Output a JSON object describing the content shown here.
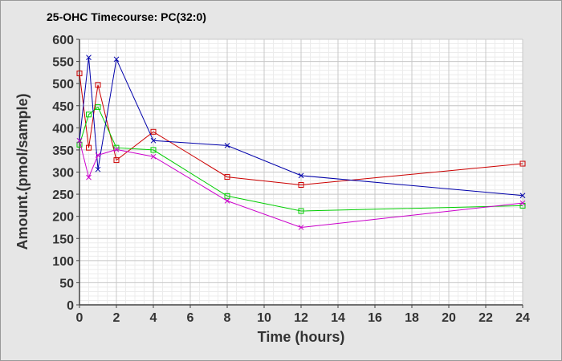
{
  "chart_data": {
    "type": "line",
    "title": "25-OHC Timecourse: PC(32:0)",
    "xlabel": "Time (hours)",
    "ylabel": "Amount.(pmol/sample)",
    "xlim": [
      0,
      24
    ],
    "ylim": [
      0,
      600
    ],
    "x_ticks": [
      "0",
      "2",
      "4",
      "6",
      "8",
      "10",
      "12",
      "14",
      "16",
      "18",
      "20",
      "22",
      "24"
    ],
    "y_ticks": [
      "0",
      "50",
      "100",
      "150",
      "200",
      "250",
      "300",
      "350",
      "400",
      "450",
      "500",
      "550",
      "600"
    ],
    "x_major_step": 2,
    "x_minor_step": 0.5,
    "y_major_step": 50,
    "y_minor_step": 10,
    "grid": true,
    "series": [
      {
        "name": "red",
        "color": "#cc0000",
        "marker": "square",
        "x": [
          0,
          0.5,
          1,
          2,
          4,
          8,
          12,
          24
        ],
        "values": [
          523,
          355,
          497,
          327,
          391,
          289,
          271,
          319
        ]
      },
      {
        "name": "green",
        "color": "#00cc00",
        "marker": "square",
        "x": [
          0,
          0.5,
          1,
          2,
          4,
          8,
          12,
          24
        ],
        "values": [
          362,
          430,
          447,
          355,
          350,
          246,
          212,
          224
        ]
      },
      {
        "name": "blue",
        "color": "#0000aa",
        "marker": "x",
        "x": [
          0,
          0.5,
          1,
          2,
          4,
          8,
          12,
          24
        ],
        "values": [
          371,
          559,
          306,
          555,
          371,
          360,
          292,
          247
        ]
      },
      {
        "name": "magenta",
        "color": "#cc00cc",
        "marker": "x",
        "x": [
          0,
          0.5,
          1,
          2,
          4,
          8,
          12,
          24
        ],
        "values": [
          371,
          288,
          338,
          351,
          335,
          235,
          175,
          230
        ]
      }
    ]
  }
}
